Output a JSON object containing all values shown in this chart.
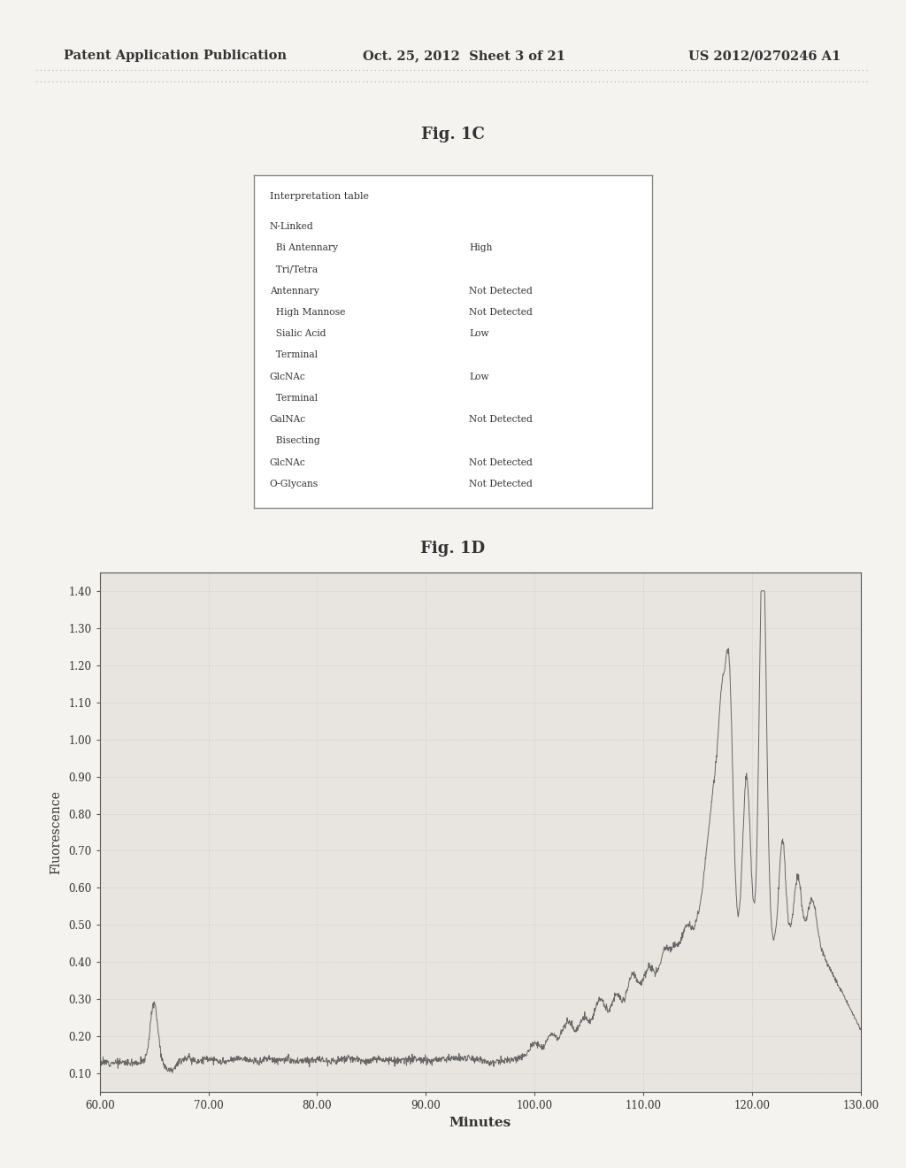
{
  "page_header_left": "Patent Application Publication",
  "page_header_center": "Oct. 25, 2012  Sheet 3 of 21",
  "page_header_right": "US 2012/0270246 A1",
  "fig1c_title": "Fig. 1C",
  "table_title": "Interpretation table",
  "table_rows": [
    {
      "label": "N-Linked",
      "indent": 0,
      "value": ""
    },
    {
      "label": "  Bi Antennary",
      "indent": 0,
      "value": "High"
    },
    {
      "label": "  Tri/Tetra",
      "indent": 0,
      "value": ""
    },
    {
      "label": "Antennary",
      "indent": 0,
      "value": "Not Detected"
    },
    {
      "label": "  High Mannose",
      "indent": 0,
      "value": "Not Detected"
    },
    {
      "label": "  Sialic Acid",
      "indent": 0,
      "value": "Low"
    },
    {
      "label": "  Terminal",
      "indent": 0,
      "value": ""
    },
    {
      "label": "GlcNAc",
      "indent": 0,
      "value": "Low"
    },
    {
      "label": "  Terminal",
      "indent": 0,
      "value": ""
    },
    {
      "label": "GalNAc",
      "indent": 0,
      "value": "Not Detected"
    },
    {
      "label": "  Bisecting",
      "indent": 0,
      "value": ""
    },
    {
      "label": "GlcNAc",
      "indent": 0,
      "value": "Not Detected"
    },
    {
      "label": "O-Glycans",
      "indent": 0,
      "value": "Not Detected"
    }
  ],
  "fig1d_title": "Fig. 1D",
  "xlabel": "Minutes",
  "ylabel": "Fluorescence",
  "xlim": [
    60.0,
    130.0
  ],
  "ylim": [
    0.05,
    1.45
  ],
  "yticks": [
    0.1,
    0.2,
    0.3,
    0.4,
    0.5,
    0.6,
    0.7,
    0.8,
    0.9,
    1.0,
    1.1,
    1.2,
    1.3,
    1.4
  ],
  "xticks": [
    60.0,
    70.0,
    80.0,
    90.0,
    100.0,
    110.0,
    120.0,
    130.0
  ],
  "bg_color": "#f5f3f0",
  "plot_bg_color": "#e8e5e0",
  "line_color": "#666666",
  "header_color": "#333333",
  "text_color": "#333333",
  "table_bg": "#e8e5e0",
  "table_border": "#888888"
}
